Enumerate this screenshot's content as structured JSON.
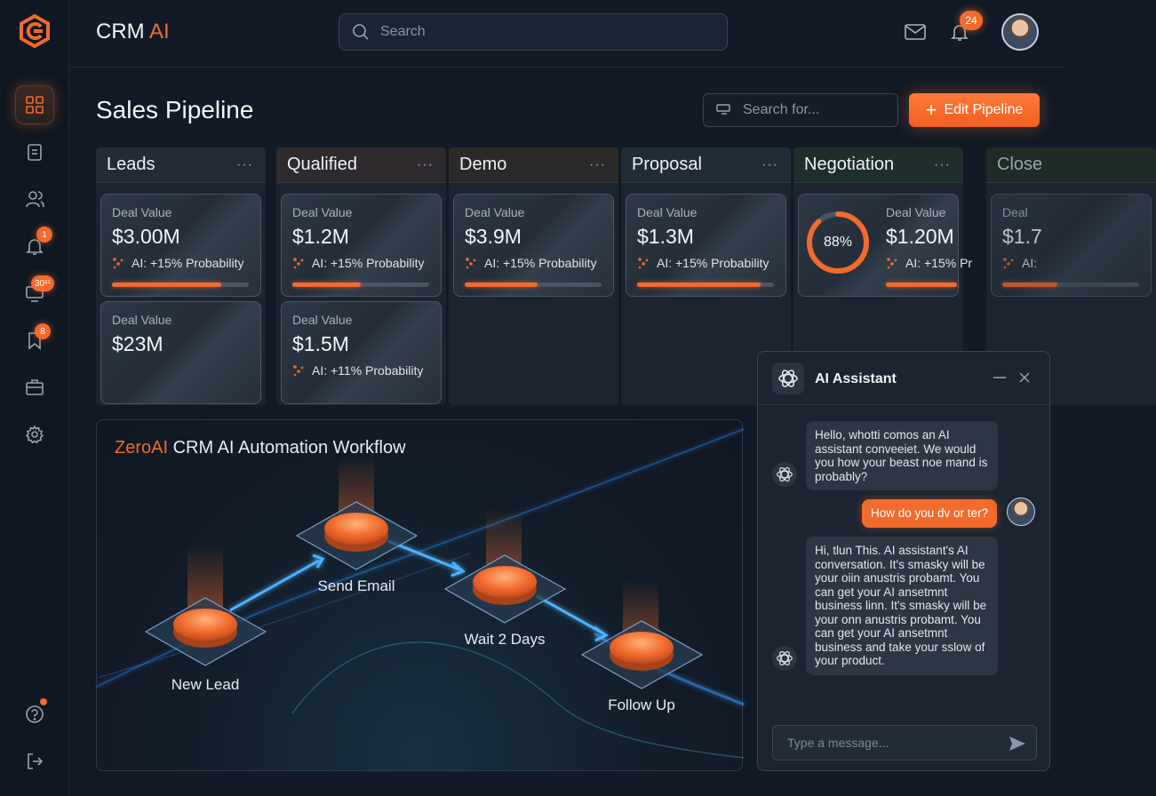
{
  "app": {
    "title_main": "CRM",
    "title_accent": "AI"
  },
  "search": {
    "placeholder": "Search"
  },
  "notifications": {
    "badge": "24"
  },
  "sidebar": {
    "items": [
      {
        "name": "dashboard",
        "badge": ""
      },
      {
        "name": "clipboard",
        "badge": ""
      },
      {
        "name": "contacts",
        "badge": ""
      },
      {
        "name": "alerts",
        "badge": "1"
      },
      {
        "name": "messages",
        "badge": "30¹¹"
      },
      {
        "name": "bookmarks",
        "badge": "8"
      },
      {
        "name": "briefcase",
        "badge": ""
      },
      {
        "name": "settings",
        "badge": ""
      }
    ]
  },
  "page": {
    "title": "Sales Pipeline",
    "search_placeholder": "Search for...",
    "edit_label": "Edit Pipeline"
  },
  "columns": [
    {
      "title": "Leads",
      "dots": "···",
      "cards": [
        {
          "label": "Deal Value",
          "value": "$3.00M",
          "prob": "AI: +15% Probability",
          "progress": 0.8
        },
        {
          "label": "Deal Value",
          "value": "$23M"
        }
      ]
    },
    {
      "title": "Qualified",
      "dots": "···",
      "cards": [
        {
          "label": "Deal Value",
          "value": "$1.2M",
          "prob": "AI: +15% Probability",
          "progress": 0.5
        },
        {
          "label": "Deal Value",
          "value": "$1.5M",
          "prob": "AI: +11% Probability"
        }
      ]
    },
    {
      "title": "Demo",
      "dots": "···",
      "cards": [
        {
          "label": "Deal Value",
          "value": "$3.9M",
          "prob": "AI: +15% Probability",
          "progress": 0.53
        }
      ]
    },
    {
      "title": "Proposal",
      "dots": "···",
      "cards": [
        {
          "label": "Deal Value",
          "value": "$1.3M",
          "prob": "AI: +15% Probability",
          "progress": 0.9
        }
      ]
    },
    {
      "title": "Negotiation",
      "dots": "···",
      "cards": [
        {
          "label": "Deal Value",
          "value": "$1.20M",
          "prob": "AI: +15% Pr",
          "progress": 1.0,
          "score": "88%",
          "score_value": 0.88
        }
      ]
    },
    {
      "title": "Close",
      "dots": "",
      "cards": [
        {
          "label": "Deal",
          "value": "$1.7",
          "prob": "AI:",
          "progress": 0.4
        }
      ]
    }
  ],
  "workflow": {
    "title_brand": "ZeroAI",
    "title_rest": "CRM AI Automation Workflow",
    "steps": [
      "New Lead",
      "Send Email",
      "Wait 2 Days",
      "Follow Up"
    ]
  },
  "chat": {
    "title": "AI Assistant",
    "messages": [
      {
        "role": "ai",
        "text": "Hello, whotti comos an AI assistant conveeiet. We would you how your beast noe mand is probably?"
      },
      {
        "role": "user",
        "text": "How do you dv or ter?"
      },
      {
        "role": "ai",
        "text": "Hi, tlun This. AI assistant's AI conversation. It's smasky will be your oiin anustris probamt. You can get your AI ansetmnt business linn. It's smasky will be your onn anustris probamt. You can get your AI ansetmnt business and take your sslow of your product."
      }
    ],
    "input_placeholder": "Type a message..."
  },
  "colors": {
    "accent": "#f26a2c",
    "bg": "#111a26",
    "panel": "#1b2430"
  }
}
